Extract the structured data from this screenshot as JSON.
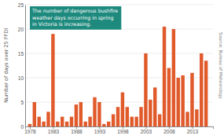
{
  "chart_data": {
    "type": "bar",
    "ylabel": "Number of days over 25 FFDI",
    "annotation": "The number of dangerous bushfire\nweather days occurring in spring\nin Victoria is increasing.",
    "source": "Source: Bureau of Meteorology",
    "x": [
      1978,
      1979,
      1980,
      1981,
      1982,
      1983,
      1984,
      1985,
      1986,
      1987,
      1988,
      1989,
      1990,
      1991,
      1992,
      1993,
      1994,
      1995,
      1996,
      1997,
      1998,
      1999,
      2000,
      2001,
      2002,
      2003,
      2004,
      2005,
      2006,
      2007,
      2008,
      2009,
      2010,
      2011,
      2012,
      2013,
      2014,
      2015,
      2016
    ],
    "values": [
      0.5,
      5,
      2,
      1,
      3,
      19,
      1,
      2,
      1,
      2,
      4.5,
      5,
      1,
      2,
      6,
      5,
      0.5,
      1,
      2.5,
      4,
      7,
      4,
      2,
      2,
      4,
      15,
      5.5,
      8,
      2.5,
      20.5,
      12,
      20,
      10,
      10.5,
      3,
      11,
      3.5,
      15,
      13.5
    ],
    "color": "#e05a2b",
    "xlim": [
      1977,
      2017.5
    ],
    "xticks": [
      1978,
      1983,
      1988,
      1993,
      1998,
      2003,
      2008,
      2013
    ],
    "ylim": [
      0,
      25
    ],
    "yticks": [
      0,
      5,
      10,
      15,
      20,
      25
    ],
    "grid": true
  }
}
